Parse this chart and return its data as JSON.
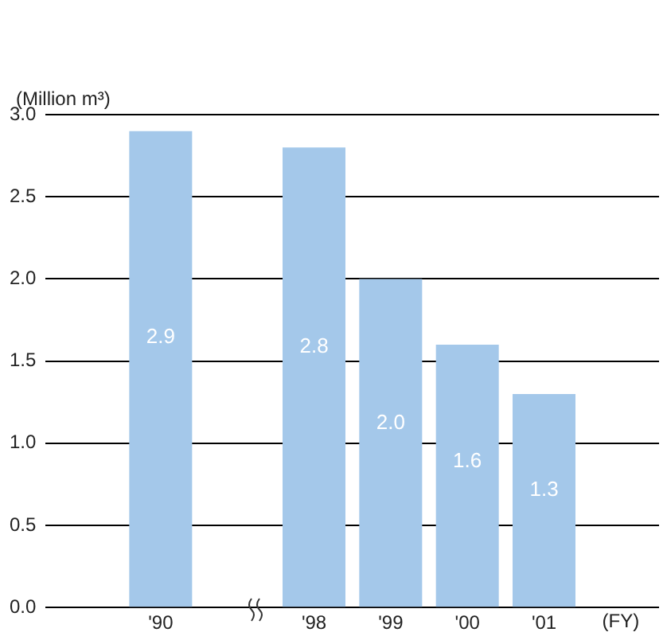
{
  "chart_data": {
    "type": "bar",
    "ylabel": "(Million m³)",
    "xlabel": "(FY)",
    "categories": [
      null,
      "'90",
      null,
      "'98",
      "'99",
      "'00",
      "'01",
      null
    ],
    "values": [
      null,
      2.9,
      null,
      2.8,
      2.0,
      1.6,
      1.3,
      null
    ],
    "color": "#a4c8ea",
    "value_labels": [
      null,
      "2.9",
      null,
      "2.8",
      "2.0",
      "1.6",
      "1.3",
      null
    ],
    "ylim": [
      0,
      3
    ],
    "yticks": [
      {
        "value": 0,
        "label": "0.0"
      },
      {
        "value": 0.5,
        "label": "0.5"
      },
      {
        "value": 1,
        "label": "1.0"
      },
      {
        "value": 1.5,
        "label": "1.5"
      },
      {
        "value": 2,
        "label": "2.0"
      },
      {
        "value": 2.5,
        "label": "2.5"
      },
      {
        "value": 3,
        "label": "3.0"
      }
    ],
    "grid": "y",
    "legend": false
  }
}
